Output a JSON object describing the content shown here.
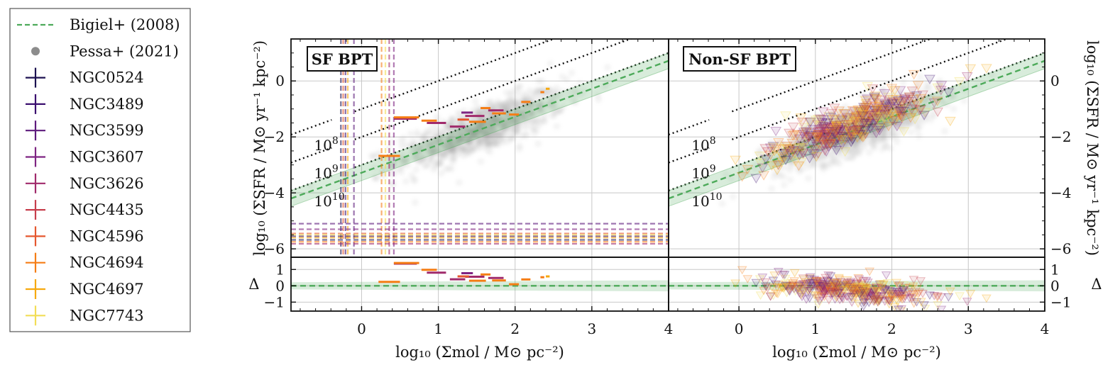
{
  "chart_data": {
    "type": "scatter",
    "legend_position": "left-outside",
    "legend": [
      {
        "label": "Bigiel+ (2008)",
        "style": "dashed-line",
        "color": "#4daa5a"
      },
      {
        "label": "Pessa+ (2021)",
        "style": "dot",
        "color": "#8c8c8c"
      },
      {
        "label": "NGC0524",
        "style": "cross",
        "color": "#1c1150"
      },
      {
        "label": "NGC3489",
        "style": "cross",
        "color": "#3b0f6f"
      },
      {
        "label": "NGC3599",
        "style": "cross",
        "color": "#5d1a7c"
      },
      {
        "label": "NGC3607",
        "style": "cross",
        "color": "#7e2482"
      },
      {
        "label": "NGC3626",
        "style": "cross",
        "color": "#a02a6b"
      },
      {
        "label": "NGC4435",
        "style": "cross",
        "color": "#c73e4c"
      },
      {
        "label": "NGC4596",
        "style": "cross",
        "color": "#e5572e"
      },
      {
        "label": "NGC4694",
        "style": "cross",
        "color": "#f57d15"
      },
      {
        "label": "NGC4697",
        "style": "cross",
        "color": "#f6a90f"
      },
      {
        "label": "NGC7743",
        "style": "cross",
        "color": "#f2dd56"
      }
    ],
    "xlabel": "log₁₀ (Σmol / M⊙ pc⁻²)",
    "ylabel": "log₁₀ (ΣSFR / M⊙ yr⁻¹ kpc⁻²)",
    "residual_ylabel": "Δ",
    "xlim": [
      -0.92,
      4.0
    ],
    "ylim_main": [
      -6.3,
      1.5
    ],
    "ylim_residual": [
      -1.55,
      1.75
    ],
    "x_ticks": [
      0,
      1,
      2,
      3,
      4
    ],
    "x_tick_labels": [
      "0",
      "1",
      "2",
      "3",
      "4"
    ],
    "y_ticks_main": [
      -6,
      -4,
      -2,
      0
    ],
    "y_tick_labels_main": [
      "−6",
      "−4",
      "−2",
      "0"
    ],
    "y_ticks_residual": [
      -1,
      0,
      1
    ],
    "y_tick_labels_residual": [
      "−1",
      "0",
      "1"
    ],
    "grid": true,
    "bigiel_relation": {
      "slope": 1.0,
      "intercept": -3.28,
      "band_halfwidth": 0.28
    },
    "depletion_lines": [
      {
        "label_base": "10",
        "label_exp": "8",
        "offset": -1.0,
        "label_x": -0.62,
        "label_y": -2.38
      },
      {
        "label_base": "10",
        "label_exp": "9",
        "offset": -2.0,
        "label_x": -0.62,
        "label_y": -3.38
      },
      {
        "label_base": "10",
        "label_exp": "10",
        "offset": -3.0,
        "label_x": -0.62,
        "label_y": -4.38
      }
    ],
    "panels": [
      {
        "title": "SF BPT",
        "x_upper_limits": [
          {
            "galaxy": "NGC0524",
            "x": -0.27
          },
          {
            "galaxy": "NGC3489",
            "x": -0.21
          },
          {
            "galaxy": "NGC3599",
            "x": -0.1
          },
          {
            "galaxy": "NGC3607",
            "x": 0.42
          },
          {
            "galaxy": "NGC3626",
            "x": 0.36
          },
          {
            "galaxy": "NGC4596",
            "x": -0.24
          },
          {
            "galaxy": "NGC4694",
            "x": 0.26
          },
          {
            "galaxy": "NGC4697",
            "x": -0.18
          },
          {
            "galaxy": "NGC7743",
            "x": 0.31
          }
        ],
        "y_upper_limits": [
          {
            "galaxy": "NGC0524",
            "y": -5.68
          },
          {
            "galaxy": "NGC3489",
            "y": -5.55
          },
          {
            "galaxy": "NGC3599",
            "y": -5.1
          },
          {
            "galaxy": "NGC3607",
            "y": -5.3
          },
          {
            "galaxy": "NGC3626",
            "y": -5.82
          },
          {
            "galaxy": "NGC4596",
            "y": -5.45
          },
          {
            "galaxy": "NGC4694",
            "y": -5.75
          },
          {
            "galaxy": "NGC4697",
            "y": -5.6
          },
          {
            "galaxy": "NGC7743",
            "y": -5.5
          }
        ],
        "detections": [
          {
            "galaxy": "NGC3626",
            "x": [
              0.42,
              0.72
            ],
            "y": -1.35
          },
          {
            "galaxy": "NGC3626",
            "x": [
              0.85,
              1.1
            ],
            "y": -1.5
          },
          {
            "galaxy": "NGC3626",
            "x": [
              1.15,
              1.35
            ],
            "y": -1.63
          },
          {
            "galaxy": "NGC3626",
            "x": [
              1.35,
              1.6
            ],
            "y": -1.25
          },
          {
            "galaxy": "NGC3626",
            "x": [
              1.65,
              1.85
            ],
            "y": -1.05
          },
          {
            "galaxy": "NGC3607",
            "x": [
              1.3,
              1.45
            ],
            "y": -1.13
          },
          {
            "galaxy": "NGC4694",
            "x": [
              0.42,
              0.75
            ],
            "y": -1.3
          },
          {
            "galaxy": "NGC4694",
            "x": [
              0.78,
              0.98
            ],
            "y": -1.42
          },
          {
            "galaxy": "NGC4694",
            "x": [
              1.4,
              1.62
            ],
            "y": -1.46
          },
          {
            "galaxy": "NGC4694",
            "x": [
              1.7,
              1.88
            ],
            "y": -1.16
          },
          {
            "galaxy": "NGC4694",
            "x": [
              1.92,
              2.05
            ],
            "y": -1.2
          },
          {
            "galaxy": "NGC4694",
            "x": [
              1.55,
              1.68
            ],
            "y": -0.97
          },
          {
            "galaxy": "NGC4694",
            "x": [
              2.08,
              2.2
            ],
            "y": -0.75
          },
          {
            "galaxy": "NGC4694",
            "x": [
              2.33,
              2.38
            ],
            "y": -0.4
          },
          {
            "galaxy": "NGC4694",
            "x": [
              0.22,
              0.5
            ],
            "y": -2.68
          },
          {
            "galaxy": "NGC4596",
            "x": [
              1.25,
              1.4
            ],
            "y": -1.38
          },
          {
            "galaxy": "NGC4697",
            "x": [
              2.4,
              2.45
            ],
            "y": -0.28
          }
        ]
      },
      {
        "title": "Non-SF BPT",
        "upper_limit_cloud": {
          "x_center": 1.45,
          "x_spread": 0.55,
          "y_offset": 0.25,
          "colors": [
            "#3b0f6f",
            "#7e2482",
            "#a02a6b",
            "#c73e4c",
            "#f57d15",
            "#f6a90f",
            "#f2dd56"
          ]
        }
      }
    ]
  }
}
